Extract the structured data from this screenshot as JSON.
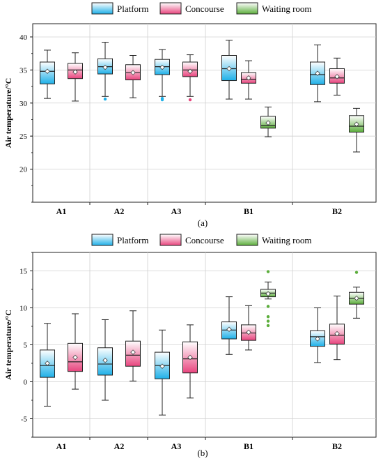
{
  "colors": {
    "platform": "#1fb0e8",
    "concourse": "#e8457e",
    "waiting": "#5cae3c"
  },
  "chart_data": [
    {
      "type": "boxplot",
      "panel_label": "(a)",
      "ylabel": "Air temperature/°C",
      "ylim": [
        15,
        42
      ],
      "yticks": [
        20,
        25,
        30,
        35,
        40
      ],
      "grid": true,
      "legend_position": "top-center",
      "legend": [
        "Platform",
        "Concourse",
        "Waiting room"
      ],
      "categories": [
        "A1",
        "A2",
        "A3",
        "B1",
        "B2"
      ],
      "series": [
        {
          "name": "Platform",
          "boxes": [
            {
              "category": "A1",
              "min": 30.7,
              "q1": 32.9,
              "median": 34.8,
              "q3": 36.2,
              "max": 38.0,
              "mean": 34.8,
              "outliers": []
            },
            {
              "category": "A2",
              "min": 31.0,
              "q1": 34.4,
              "median": 35.5,
              "q3": 36.7,
              "max": 39.2,
              "mean": 35.4,
              "outliers": [
                30.6
              ]
            },
            {
              "category": "A3",
              "min": 31.0,
              "q1": 34.3,
              "median": 35.5,
              "q3": 36.6,
              "max": 38.1,
              "mean": 35.4,
              "outliers": [
                30.5,
                30.7
              ]
            },
            {
              "category": "B1",
              "min": 30.6,
              "q1": 33.4,
              "median": 35.2,
              "q3": 37.2,
              "max": 39.5,
              "mean": 35.2,
              "outliers": []
            },
            {
              "category": "B2",
              "min": 30.2,
              "q1": 32.8,
              "median": 34.3,
              "q3": 36.2,
              "max": 38.8,
              "mean": 34.5,
              "outliers": []
            }
          ]
        },
        {
          "name": "Concourse",
          "boxes": [
            {
              "category": "A1",
              "min": 30.3,
              "q1": 33.7,
              "median": 35.0,
              "q3": 36.0,
              "max": 37.6,
              "mean": 34.7,
              "outliers": []
            },
            {
              "category": "A2",
              "min": 30.8,
              "q1": 33.5,
              "median": 34.6,
              "q3": 35.8,
              "max": 37.2,
              "mean": 34.6,
              "outliers": []
            },
            {
              "category": "A3",
              "min": 31.0,
              "q1": 34.0,
              "median": 35.0,
              "q3": 36.2,
              "max": 37.3,
              "mean": 34.8,
              "outliers": [
                30.5
              ]
            },
            {
              "category": "B1",
              "min": 30.6,
              "q1": 33.0,
              "median": 33.6,
              "q3": 34.6,
              "max": 36.4,
              "mean": 33.8,
              "outliers": []
            },
            {
              "category": "B2",
              "min": 31.2,
              "q1": 33.0,
              "median": 33.8,
              "q3": 35.2,
              "max": 36.8,
              "mean": 34.0,
              "outliers": []
            }
          ]
        },
        {
          "name": "Waiting room",
          "boxes": [
            {
              "category": "B1",
              "min": 24.9,
              "q1": 26.2,
              "median": 26.6,
              "q3": 28.0,
              "max": 29.4,
              "mean": 27.0,
              "outliers": []
            },
            {
              "category": "B2",
              "min": 22.6,
              "q1": 25.6,
              "median": 26.5,
              "q3": 28.1,
              "max": 29.2,
              "mean": 26.8,
              "outliers": []
            }
          ]
        }
      ]
    },
    {
      "type": "boxplot",
      "panel_label": "(b)",
      "ylabel": "Air temperature/°C",
      "ylim": [
        -7.5,
        17.5
      ],
      "yticks": [
        -5,
        0,
        5,
        10,
        15
      ],
      "grid": true,
      "legend_position": "top-center",
      "legend": [
        "Platform",
        "Concourse",
        "Waiting room"
      ],
      "categories": [
        "A1",
        "A2",
        "A3",
        "B1",
        "B2"
      ],
      "series": [
        {
          "name": "Platform",
          "boxes": [
            {
              "category": "A1",
              "min": -3.3,
              "q1": 0.6,
              "median": 2.2,
              "q3": 4.3,
              "max": 7.9,
              "mean": 2.5,
              "outliers": []
            },
            {
              "category": "A2",
              "min": -2.5,
              "q1": 0.9,
              "median": 2.4,
              "q3": 4.6,
              "max": 8.4,
              "mean": 2.9,
              "outliers": []
            },
            {
              "category": "A3",
              "min": -4.5,
              "q1": 0.4,
              "median": 2.2,
              "q3": 4.0,
              "max": 7.0,
              "mean": 2.1,
              "outliers": []
            },
            {
              "category": "B1",
              "min": 3.7,
              "q1": 5.8,
              "median": 7.0,
              "q3": 8.1,
              "max": 11.5,
              "mean": 7.1,
              "outliers": []
            },
            {
              "category": "B2",
              "min": 2.6,
              "q1": 4.8,
              "median": 6.1,
              "q3": 6.9,
              "max": 10.0,
              "mean": 5.8,
              "outliers": []
            }
          ]
        },
        {
          "name": "Concourse",
          "boxes": [
            {
              "category": "A1",
              "min": -1.0,
              "q1": 1.4,
              "median": 2.7,
              "q3": 5.2,
              "max": 9.2,
              "mean": 3.3,
              "outliers": []
            },
            {
              "category": "A2",
              "min": 0.1,
              "q1": 2.1,
              "median": 3.6,
              "q3": 5.5,
              "max": 9.6,
              "mean": 4.0,
              "outliers": []
            },
            {
              "category": "A3",
              "min": -2.2,
              "q1": 1.2,
              "median": 3.1,
              "q3": 5.4,
              "max": 7.7,
              "mean": 3.3,
              "outliers": []
            },
            {
              "category": "B1",
              "min": 4.3,
              "q1": 5.6,
              "median": 6.6,
              "q3": 7.7,
              "max": 10.3,
              "mean": 6.7,
              "outliers": []
            },
            {
              "category": "B2",
              "min": 3.0,
              "q1": 5.1,
              "median": 6.3,
              "q3": 7.8,
              "max": 11.6,
              "mean": 6.5,
              "outliers": []
            }
          ]
        },
        {
          "name": "Waiting room",
          "boxes": [
            {
              "category": "B1",
              "min": 11.2,
              "q1": 11.5,
              "median": 12.0,
              "q3": 12.5,
              "max": 13.5,
              "mean": 11.9,
              "outliers": [
                14.9,
                10.2,
                8.8,
                8.2,
                7.6
              ]
            },
            {
              "category": "B2",
              "min": 8.6,
              "q1": 10.5,
              "median": 11.3,
              "q3": 12.1,
              "max": 12.8,
              "mean": 11.3,
              "outliers": [
                14.8
              ]
            }
          ]
        }
      ]
    }
  ]
}
